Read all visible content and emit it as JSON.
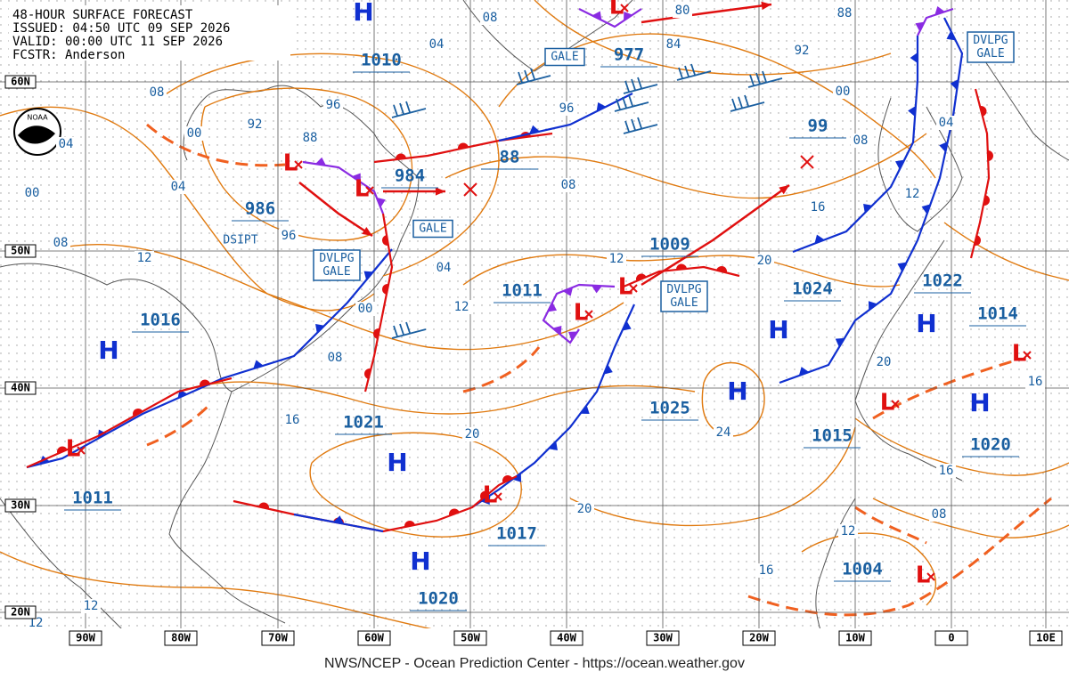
{
  "header": {
    "lines": [
      "48-HOUR SURFACE FORECAST",
      "ISSUED: 04:50 UTC 09 SEP 2026",
      "VALID:  00:00 UTC 11 SEP 2026",
      "FCSTR:  Anderson"
    ]
  },
  "logo": "NOAA",
  "footer": "NWS/NCEP - Ocean Prediction Center - https://ocean.weather.gov",
  "lat_labels": [
    "60N",
    "50N",
    "40N",
    "30N",
    "20N"
  ],
  "lon_labels": [
    "90W",
    "80W",
    "70W",
    "60W",
    "50W",
    "40W",
    "30W",
    "20W",
    "10W",
    "0",
    "10E"
  ],
  "center_pressures": [
    "1010",
    "977",
    "984",
    "88",
    "99",
    "986",
    "1009",
    "1011",
    "1024",
    "1022",
    "1014",
    "1016",
    "1025",
    "1021",
    "1015",
    "1020",
    "1011",
    "1017",
    "1004",
    "1020"
  ],
  "isobar_labels": [
    "08",
    "04",
    "80",
    "84",
    "88",
    "92",
    "00",
    "96",
    "08",
    "00",
    "92",
    "96",
    "88",
    "04",
    "04",
    "00",
    "08",
    "08",
    "04",
    "12",
    "16",
    "08",
    "12",
    "96",
    "04",
    "12",
    "20",
    "00",
    "12",
    "08",
    "20",
    "16",
    "16",
    "20",
    "24",
    "16",
    "20",
    "08",
    "12",
    "16",
    "12",
    "12"
  ],
  "warnings": [
    [
      "GALE"
    ],
    [
      "DVLPG",
      "GALE"
    ],
    [
      "GALE"
    ],
    [
      "DVLPG",
      "GALE"
    ],
    [
      "DVLPG",
      "GALE"
    ]
  ],
  "dissipating": "DSIPT",
  "highs": [
    "H",
    "H",
    "H",
    "H",
    "H",
    "H",
    "H",
    "H"
  ],
  "lows": [
    "L",
    "L",
    "L",
    "L",
    "L",
    "L",
    "L",
    "L",
    "L",
    "L"
  ]
}
